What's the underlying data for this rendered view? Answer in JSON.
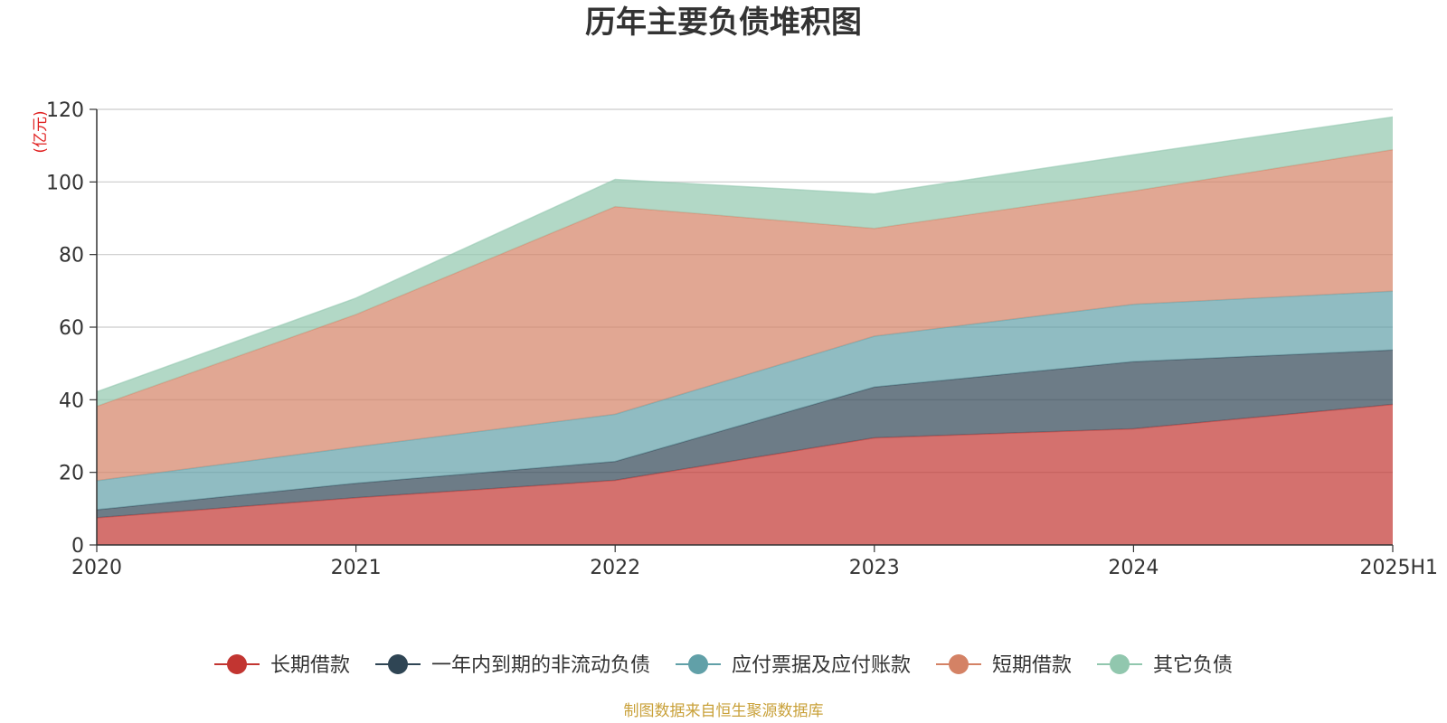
{
  "chart_data": {
    "type": "area",
    "stacked": true,
    "title": "历年主要负债堆积图",
    "unit": "(亿元)",
    "categories": [
      "2020",
      "2021",
      "2022",
      "2023",
      "2024",
      "2025H1"
    ],
    "ylim": [
      0,
      120
    ],
    "yticks": [
      0,
      20,
      40,
      60,
      80,
      100,
      120
    ],
    "grid": true,
    "legend_position": "bottom",
    "series": [
      {
        "name": "长期借款",
        "color": "#c23531",
        "values": [
          7.5,
          13.0,
          17.8,
          29.5,
          32.0,
          38.7
        ]
      },
      {
        "name": "一年内到期的非流动负债",
        "color": "#2f4554",
        "values": [
          2.2,
          4.0,
          5.2,
          14.0,
          18.5,
          15.0
        ]
      },
      {
        "name": "应付票据及应付账款",
        "color": "#61a0a8",
        "values": [
          8.0,
          10.0,
          13.0,
          14.0,
          15.8,
          16.2
        ]
      },
      {
        "name": "短期借款",
        "color": "#d48265",
        "values": [
          20.5,
          36.5,
          57.2,
          29.7,
          31.2,
          39.0
        ]
      },
      {
        "name": "其它负债",
        "color": "#91c7ae",
        "values": [
          4.0,
          4.5,
          7.5,
          9.5,
          10.0,
          9.0
        ]
      }
    ],
    "source": "制图数据来自恒生聚源数据库"
  }
}
